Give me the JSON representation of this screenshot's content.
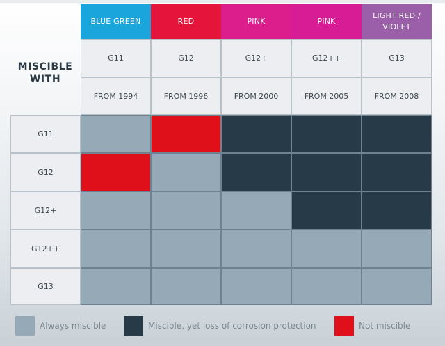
{
  "chart_data": {
    "type": "table",
    "title": "MISCIBLE WITH",
    "columns": [
      {
        "color_name": "BLUE GREEN",
        "color": "#1aa5dc",
        "code": "G11",
        "since": "FROM 1994"
      },
      {
        "color_name": "RED",
        "color": "#e5143a",
        "code": "G12",
        "since": "FROM 1996"
      },
      {
        "color_name": "PINK",
        "color": "#dc1e8c",
        "code": "G12+",
        "since": "FROM 2000"
      },
      {
        "color_name": "PINK",
        "color": "#d81c95",
        "code": "G12++",
        "since": "FROM 2005"
      },
      {
        "color_name": "LIGHT RED / VIOLET",
        "color": "#9b5ea8",
        "code": "G13",
        "since": "FROM 2008"
      }
    ],
    "rows": [
      "G11",
      "G12",
      "G12+",
      "G12++",
      "G13"
    ],
    "matrix": [
      [
        "always",
        "not",
        "loss",
        "loss",
        "loss"
      ],
      [
        "not",
        "always",
        "loss",
        "loss",
        "loss"
      ],
      [
        "always",
        "always",
        "always",
        "loss",
        "loss"
      ],
      [
        "always",
        "always",
        "always",
        "always",
        "always"
      ],
      [
        "always",
        "always",
        "always",
        "always",
        "always"
      ]
    ],
    "legend": [
      {
        "key": "always",
        "label": "Always miscible",
        "color": "#95aab6"
      },
      {
        "key": "loss",
        "label": "Miscible, yet loss of corrosion protection",
        "color": "#263b47"
      },
      {
        "key": "not",
        "label": "Not miscible",
        "color": "#e0101a"
      }
    ]
  }
}
